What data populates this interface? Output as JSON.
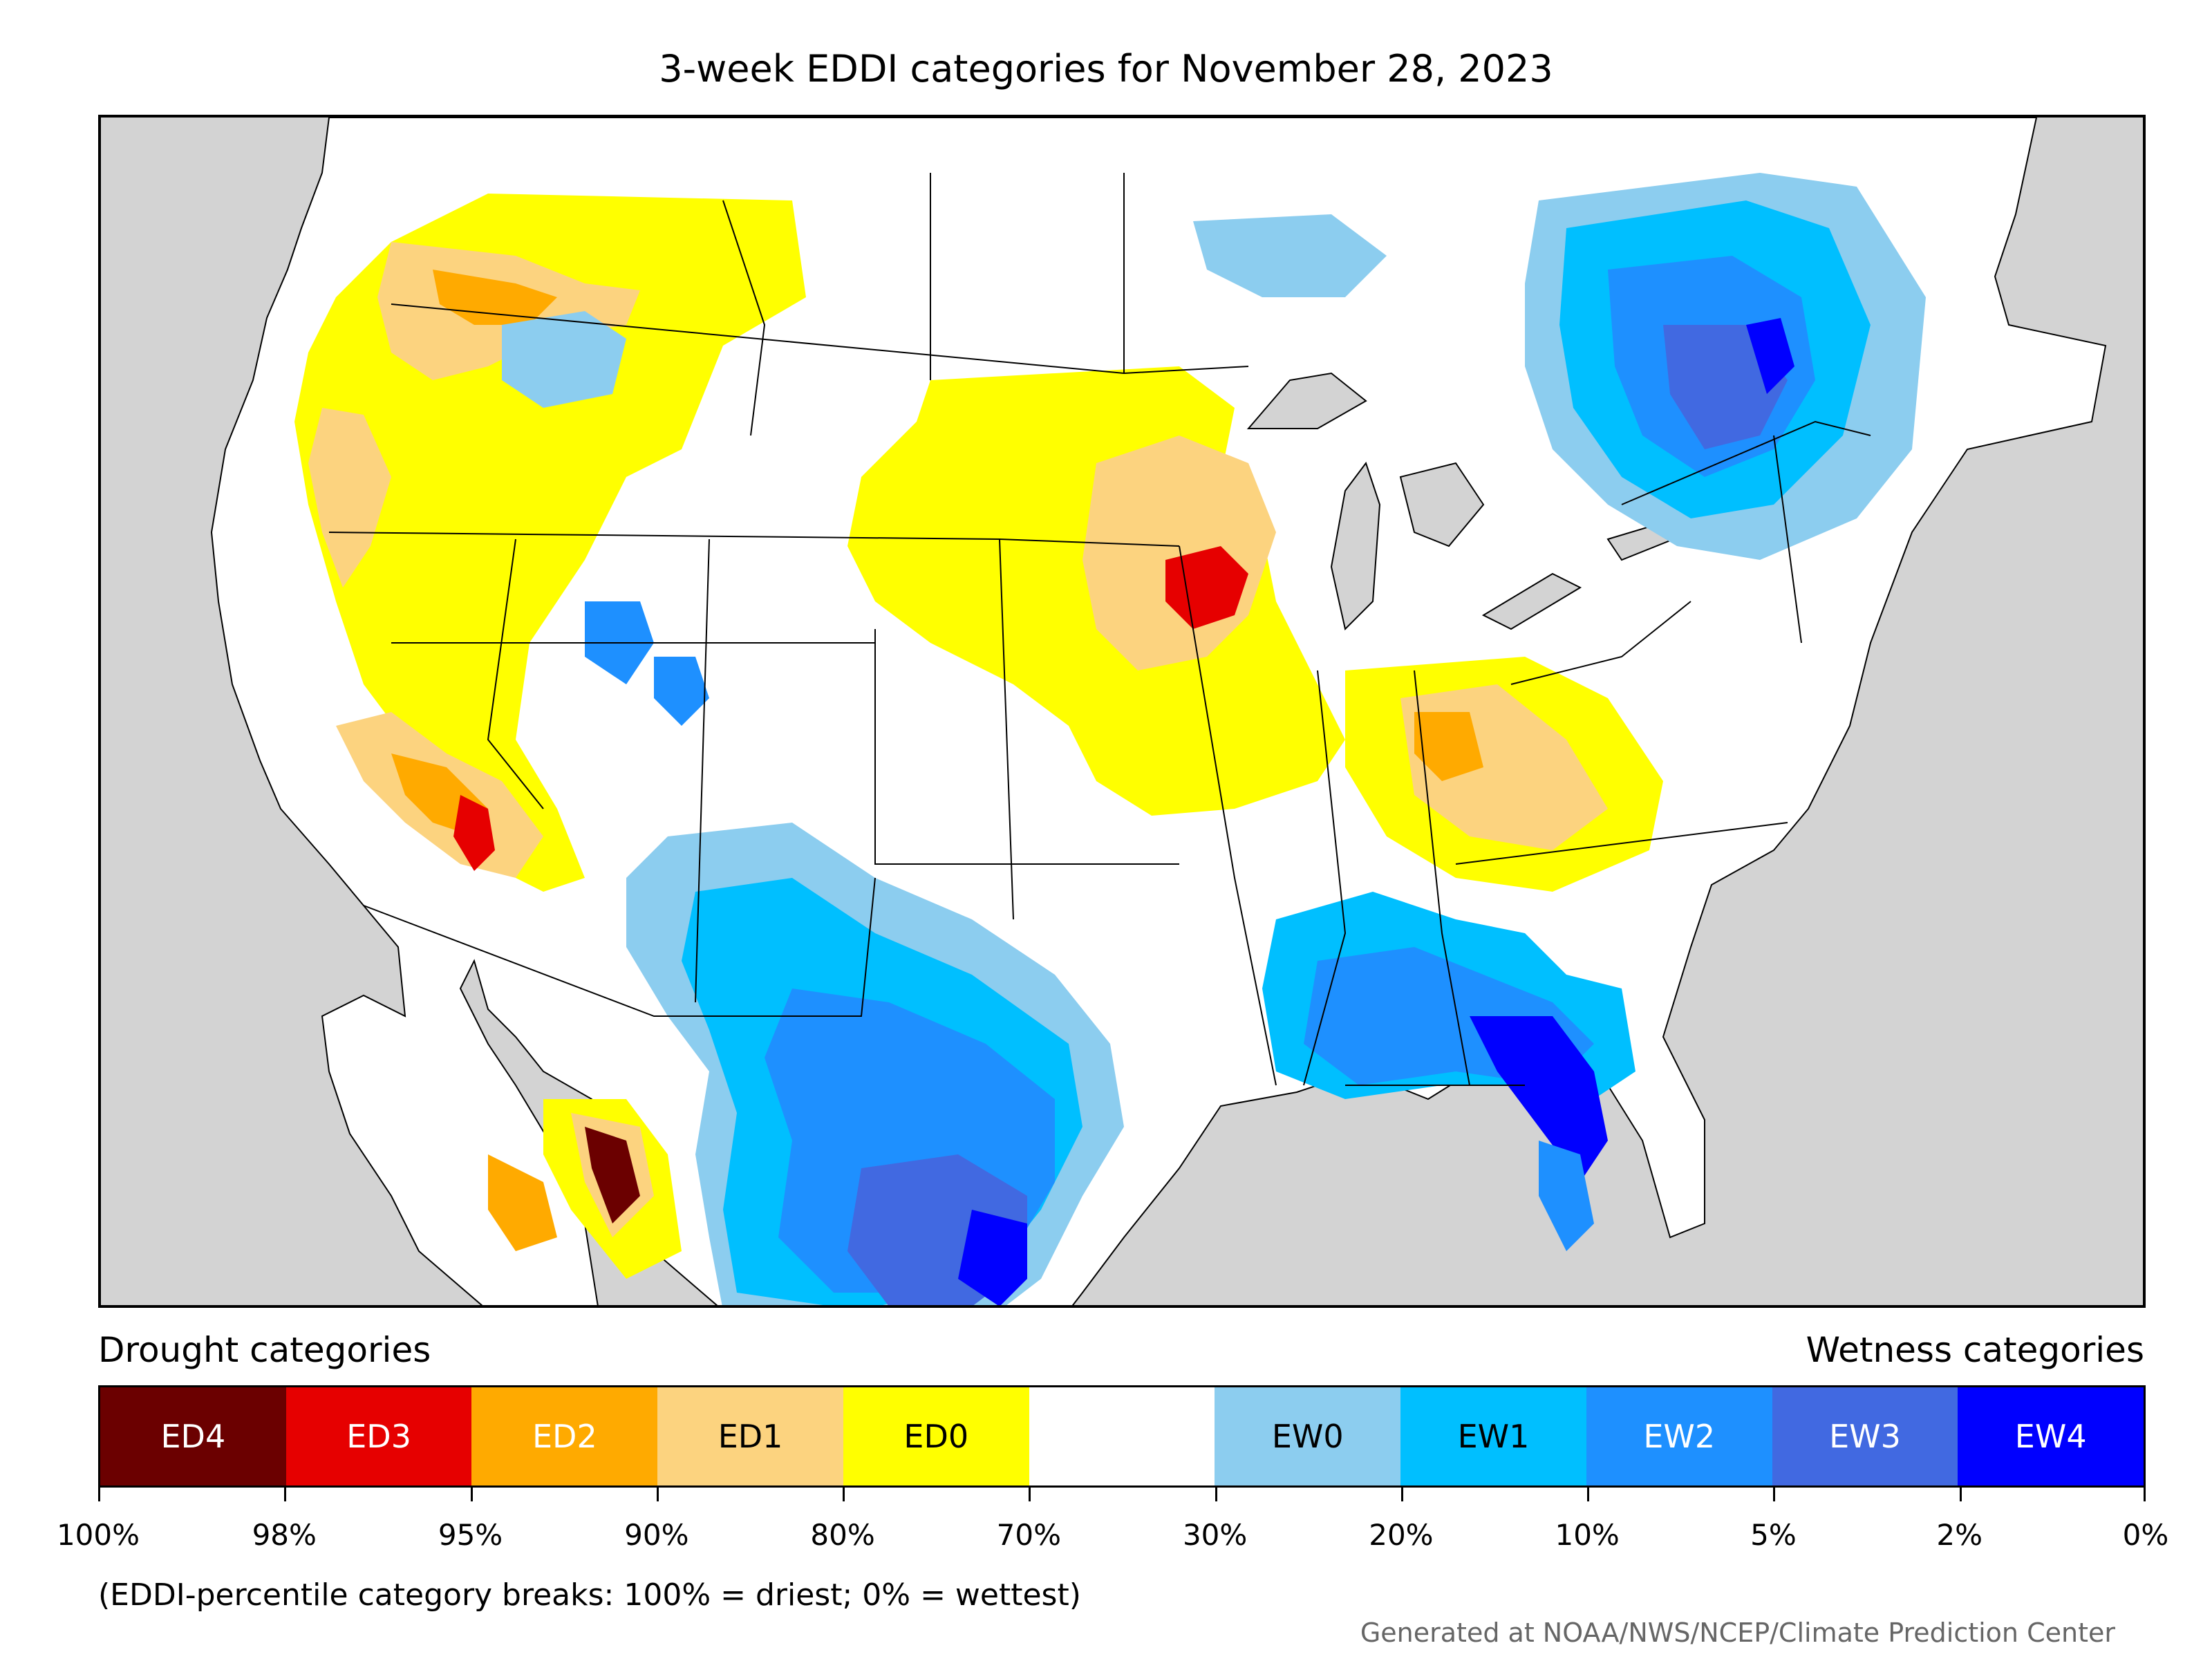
{
  "title": "3-week EDDI categories for November 28, 2023",
  "legend": {
    "drought_header": "Drought categories",
    "wetness_header": "Wetness categories",
    "categories": [
      {
        "label": "ED4",
        "color": "#6b0000",
        "text_color": "#ffffff"
      },
      {
        "label": "ED3",
        "color": "#e60000",
        "text_color": "#ffffff"
      },
      {
        "label": "ED2",
        "color": "#ffaa00",
        "text_color": "#ffffff"
      },
      {
        "label": "ED1",
        "color": "#fcd37f",
        "text_color": "#000000"
      },
      {
        "label": "ED0",
        "color": "#ffff00",
        "text_color": "#000000"
      },
      {
        "label": "",
        "color": "#ffffff",
        "text_color": "#000000"
      },
      {
        "label": "EW0",
        "color": "#8ccdef",
        "text_color": "#000000"
      },
      {
        "label": "EW1",
        "color": "#00bfff",
        "text_color": "#000000"
      },
      {
        "label": "EW2",
        "color": "#1e90ff",
        "text_color": "#ffffff"
      },
      {
        "label": "EW3",
        "color": "#4169e1",
        "text_color": "#ffffff"
      },
      {
        "label": "EW4",
        "color": "#0000ff",
        "text_color": "#ffffff"
      }
    ],
    "breaks": [
      "100%",
      "98%",
      "95%",
      "90%",
      "80%",
      "70%",
      "30%",
      "20%",
      "10%",
      "5%",
      "2%",
      "0%"
    ]
  },
  "note": "(EDDI-percentile category breaks: 100% = driest; 0% = wettest)",
  "credit": "Generated at NOAA/NWS/NCEP/Climate Prediction Center",
  "colors": {
    "ocean": "#d3d3d3",
    "land": "#ffffff",
    "border": "#000000"
  }
}
